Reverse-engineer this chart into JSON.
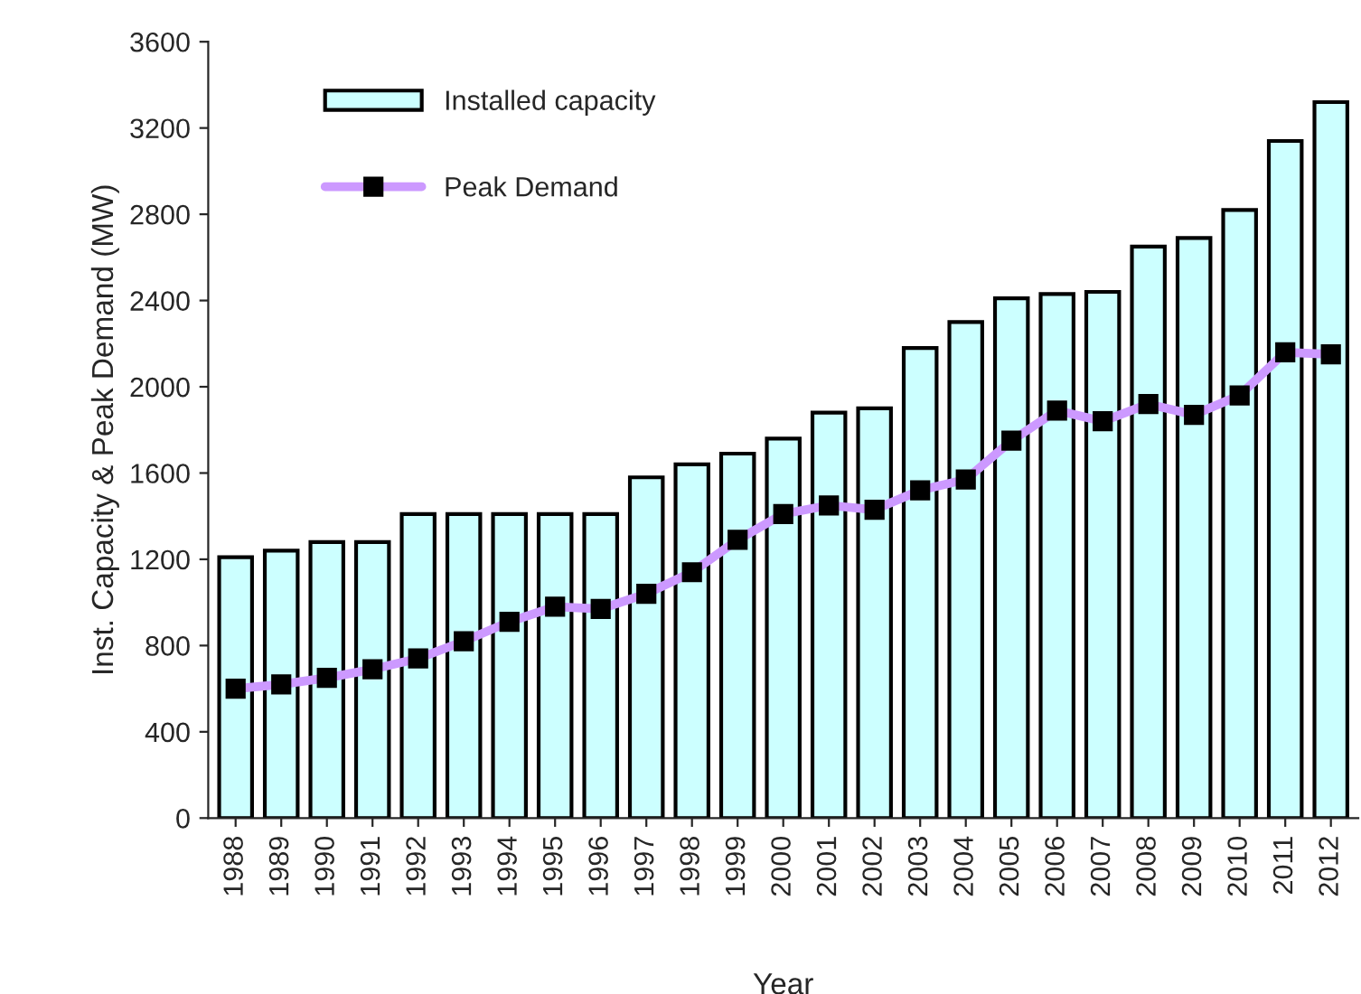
{
  "chart_data": {
    "type": "bar",
    "xlabel": "Year",
    "ylabel": "Inst. Capacity & Peak Demand (MW)",
    "categories": [
      "1988",
      "1989",
      "1990",
      "1991",
      "1992",
      "1993",
      "1994",
      "1995",
      "1996",
      "1997",
      "1998",
      "1999",
      "2000",
      "2001",
      "2002",
      "2003",
      "2004",
      "2005",
      "2006",
      "2007",
      "2008",
      "2009",
      "2010",
      "2011",
      "2012"
    ],
    "series": [
      {
        "name": "Installed capacity",
        "color": "#ccffff",
        "values": [
          1210,
          1240,
          1280,
          1280,
          1410,
          1410,
          1410,
          1410,
          1410,
          1580,
          1640,
          1690,
          1760,
          1880,
          1900,
          2180,
          2300,
          2410,
          2430,
          2440,
          2650,
          2690,
          2820,
          3140,
          3320
        ]
      },
      {
        "name": "Peak Demand",
        "type": "line",
        "color": "#cc99ff",
        "marker": "square",
        "values": [
          600,
          620,
          650,
          690,
          740,
          820,
          910,
          980,
          970,
          1040,
          1140,
          1290,
          1410,
          1450,
          1430,
          1520,
          1570,
          1750,
          1890,
          1840,
          1920,
          1870,
          1960,
          2160,
          2150
        ]
      }
    ],
    "ylim": [
      0,
      3600
    ],
    "yticks": [
      0,
      400,
      800,
      1200,
      1600,
      2000,
      2400,
      2800,
      3200,
      3600
    ],
    "grid": false,
    "legend": "top left"
  }
}
